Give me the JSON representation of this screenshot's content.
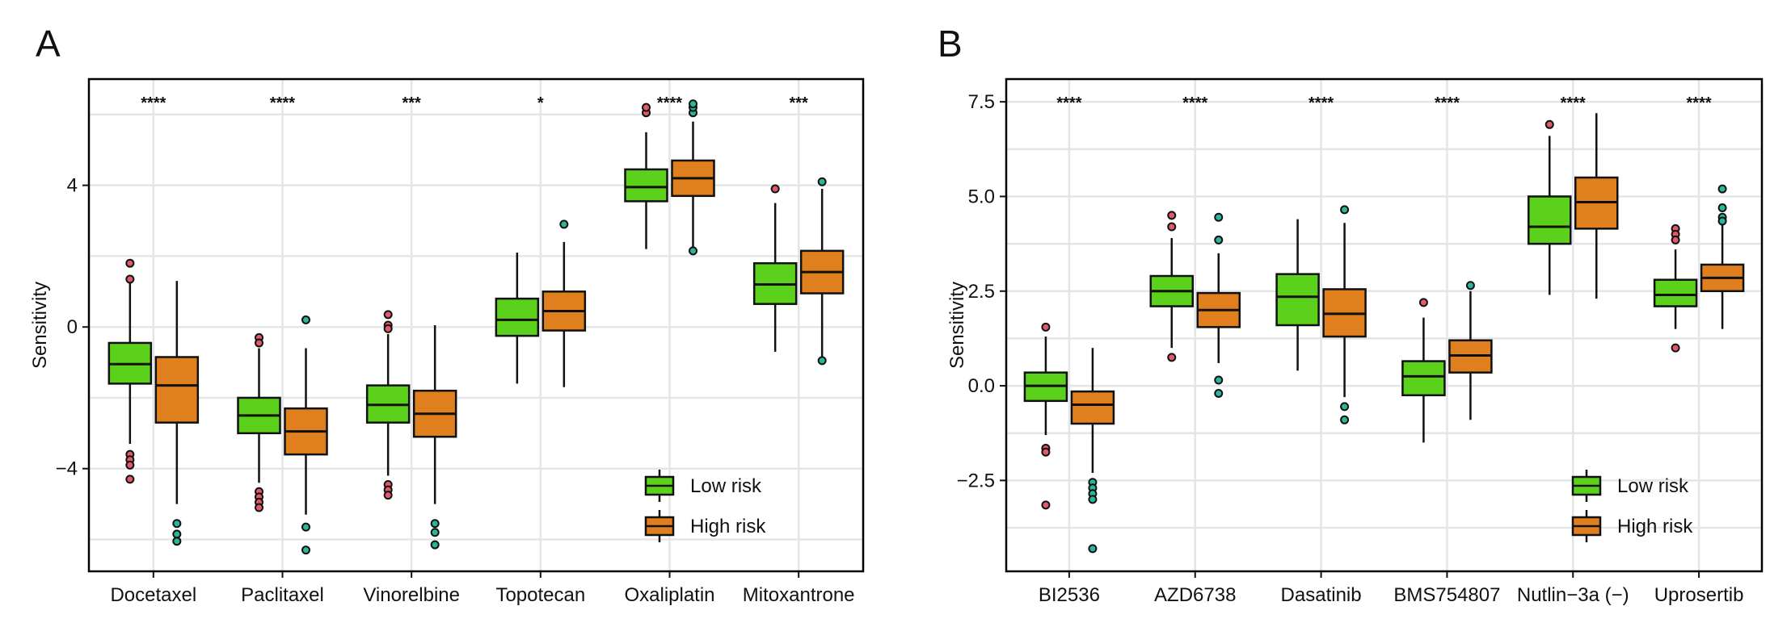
{
  "colors": {
    "low": "#5cd11c",
    "high": "#df7f1d",
    "outlier_low": "#e05a6a",
    "outlier_high": "#2bb59a",
    "grid": "#e3e6e9"
  },
  "legend": {
    "items": [
      {
        "key": "low",
        "label": "Low risk"
      },
      {
        "key": "high",
        "label": "High risk"
      }
    ]
  },
  "chart_data": [
    {
      "type": "box",
      "panel": "A",
      "ylabel": "Sensitivity",
      "ylim": [
        -6.9,
        7.0
      ],
      "yticks": [
        -4,
        0,
        4
      ],
      "ytick_labels": [
        "−4",
        "0",
        "4"
      ],
      "categories": [
        "Docetaxel",
        "Paclitaxel",
        "Vinorelbine",
        "Topotecan",
        "Oxaliplatin",
        "Mitoxantrone"
      ],
      "significance": [
        "****",
        "****",
        "***",
        "*",
        "****",
        "***"
      ],
      "groups": {
        "low": [
          {
            "min": -3.3,
            "q1": -1.6,
            "median": -1.05,
            "q3": -0.45,
            "max": 1.3,
            "outliers": [
              1.8,
              1.35,
              -3.6,
              -3.75,
              -3.9,
              -4.3
            ]
          },
          {
            "min": -4.4,
            "q1": -3.0,
            "median": -2.5,
            "q3": -2.0,
            "max": -0.6,
            "outliers": [
              -0.3,
              -0.45,
              -4.65,
              -4.8,
              -4.95,
              -5.1
            ]
          },
          {
            "min": -4.2,
            "q1": -2.7,
            "median": -2.2,
            "q3": -1.65,
            "max": -0.2,
            "outliers": [
              0.35,
              0.05,
              -0.05,
              -4.45,
              -4.6,
              -4.75
            ]
          },
          {
            "min": -1.6,
            "q1": -0.25,
            "median": 0.2,
            "q3": 0.8,
            "max": 2.1,
            "outliers": []
          },
          {
            "min": 2.2,
            "q1": 3.55,
            "median": 3.95,
            "q3": 4.45,
            "max": 5.5,
            "outliers": [
              6.05,
              6.2
            ]
          },
          {
            "min": -0.7,
            "q1": 0.65,
            "median": 1.2,
            "q3": 1.8,
            "max": 3.5,
            "outliers": [
              3.9
            ]
          }
        ],
        "high": [
          {
            "min": -5.0,
            "q1": -2.7,
            "median": -1.65,
            "q3": -0.85,
            "max": 1.3,
            "outliers": [
              -5.55,
              -5.85,
              -6.05
            ]
          },
          {
            "min": -5.3,
            "q1": -3.6,
            "median": -2.95,
            "q3": -2.3,
            "max": -0.6,
            "outliers": [
              0.2,
              -5.65,
              -6.3
            ]
          },
          {
            "min": -5.0,
            "q1": -3.1,
            "median": -2.45,
            "q3": -1.8,
            "max": 0.05,
            "outliers": [
              -5.55,
              -5.8,
              -6.15
            ]
          },
          {
            "min": -1.7,
            "q1": -0.1,
            "median": 0.45,
            "q3": 1.0,
            "max": 2.4,
            "outliers": [
              2.9
            ]
          },
          {
            "min": 2.2,
            "q1": 3.7,
            "median": 4.2,
            "q3": 4.7,
            "max": 5.8,
            "outliers": [
              2.15,
              6.05,
              6.2,
              6.3
            ]
          },
          {
            "min": -0.9,
            "q1": 0.95,
            "median": 1.55,
            "q3": 2.15,
            "max": 3.9,
            "outliers": [
              4.1,
              -0.95
            ]
          }
        ]
      }
    },
    {
      "type": "box",
      "panel": "B",
      "ylabel": "Sensitivity",
      "ylim": [
        -4.9,
        8.1
      ],
      "yticks": [
        -2.5,
        0,
        2.5,
        5,
        7.5
      ],
      "ytick_labels": [
        "−2.5",
        "0.0",
        "2.5",
        "5.0",
        "7.5"
      ],
      "categories": [
        "BI2536",
        "AZD6738",
        "Dasatinib",
        "BMS754807",
        "Nutlin−3a (−)",
        "Uprosertib"
      ],
      "significance": [
        "****",
        "****",
        "****",
        "****",
        "****",
        "****"
      ],
      "groups": {
        "low": [
          {
            "min": -1.3,
            "q1": -0.4,
            "median": 0.0,
            "q3": 0.35,
            "max": 1.3,
            "outliers": [
              1.55,
              -1.65,
              -1.75,
              -3.15
            ]
          },
          {
            "min": 1.0,
            "q1": 2.1,
            "median": 2.5,
            "q3": 2.9,
            "max": 3.9,
            "outliers": [
              4.5,
              4.2,
              0.75
            ]
          },
          {
            "min": 0.4,
            "q1": 1.6,
            "median": 2.35,
            "q3": 2.95,
            "max": 4.4,
            "outliers": []
          },
          {
            "min": -1.5,
            "q1": -0.25,
            "median": 0.25,
            "q3": 0.65,
            "max": 1.8,
            "outliers": [
              2.2
            ]
          },
          {
            "min": 2.4,
            "q1": 3.75,
            "median": 4.2,
            "q3": 5.0,
            "max": 6.6,
            "outliers": [
              6.9
            ]
          },
          {
            "min": 1.5,
            "q1": 2.1,
            "median": 2.4,
            "q3": 2.8,
            "max": 3.6,
            "outliers": [
              4.15,
              4.0,
              3.85,
              1.0
            ]
          }
        ],
        "high": [
          {
            "min": -2.3,
            "q1": -1.0,
            "median": -0.5,
            "q3": -0.15,
            "max": 1.0,
            "outliers": [
              -2.55,
              -2.7,
              -2.85,
              -3.0,
              -4.3
            ]
          },
          {
            "min": 0.6,
            "q1": 1.55,
            "median": 2.0,
            "q3": 2.45,
            "max": 3.5,
            "outliers": [
              4.45,
              3.85,
              0.15,
              -0.2
            ]
          },
          {
            "min": -0.3,
            "q1": 1.3,
            "median": 1.9,
            "q3": 2.55,
            "max": 4.3,
            "outliers": [
              4.65,
              -0.55,
              -0.9
            ]
          },
          {
            "min": -0.9,
            "q1": 0.35,
            "median": 0.8,
            "q3": 1.2,
            "max": 2.5,
            "outliers": [
              2.65
            ]
          },
          {
            "min": 2.3,
            "q1": 4.15,
            "median": 4.85,
            "q3": 5.5,
            "max": 7.2,
            "outliers": []
          },
          {
            "min": 1.5,
            "q1": 2.5,
            "median": 2.85,
            "q3": 3.2,
            "max": 4.3,
            "outliers": [
              5.2,
              4.7,
              4.45,
              4.35
            ]
          }
        ]
      }
    }
  ]
}
